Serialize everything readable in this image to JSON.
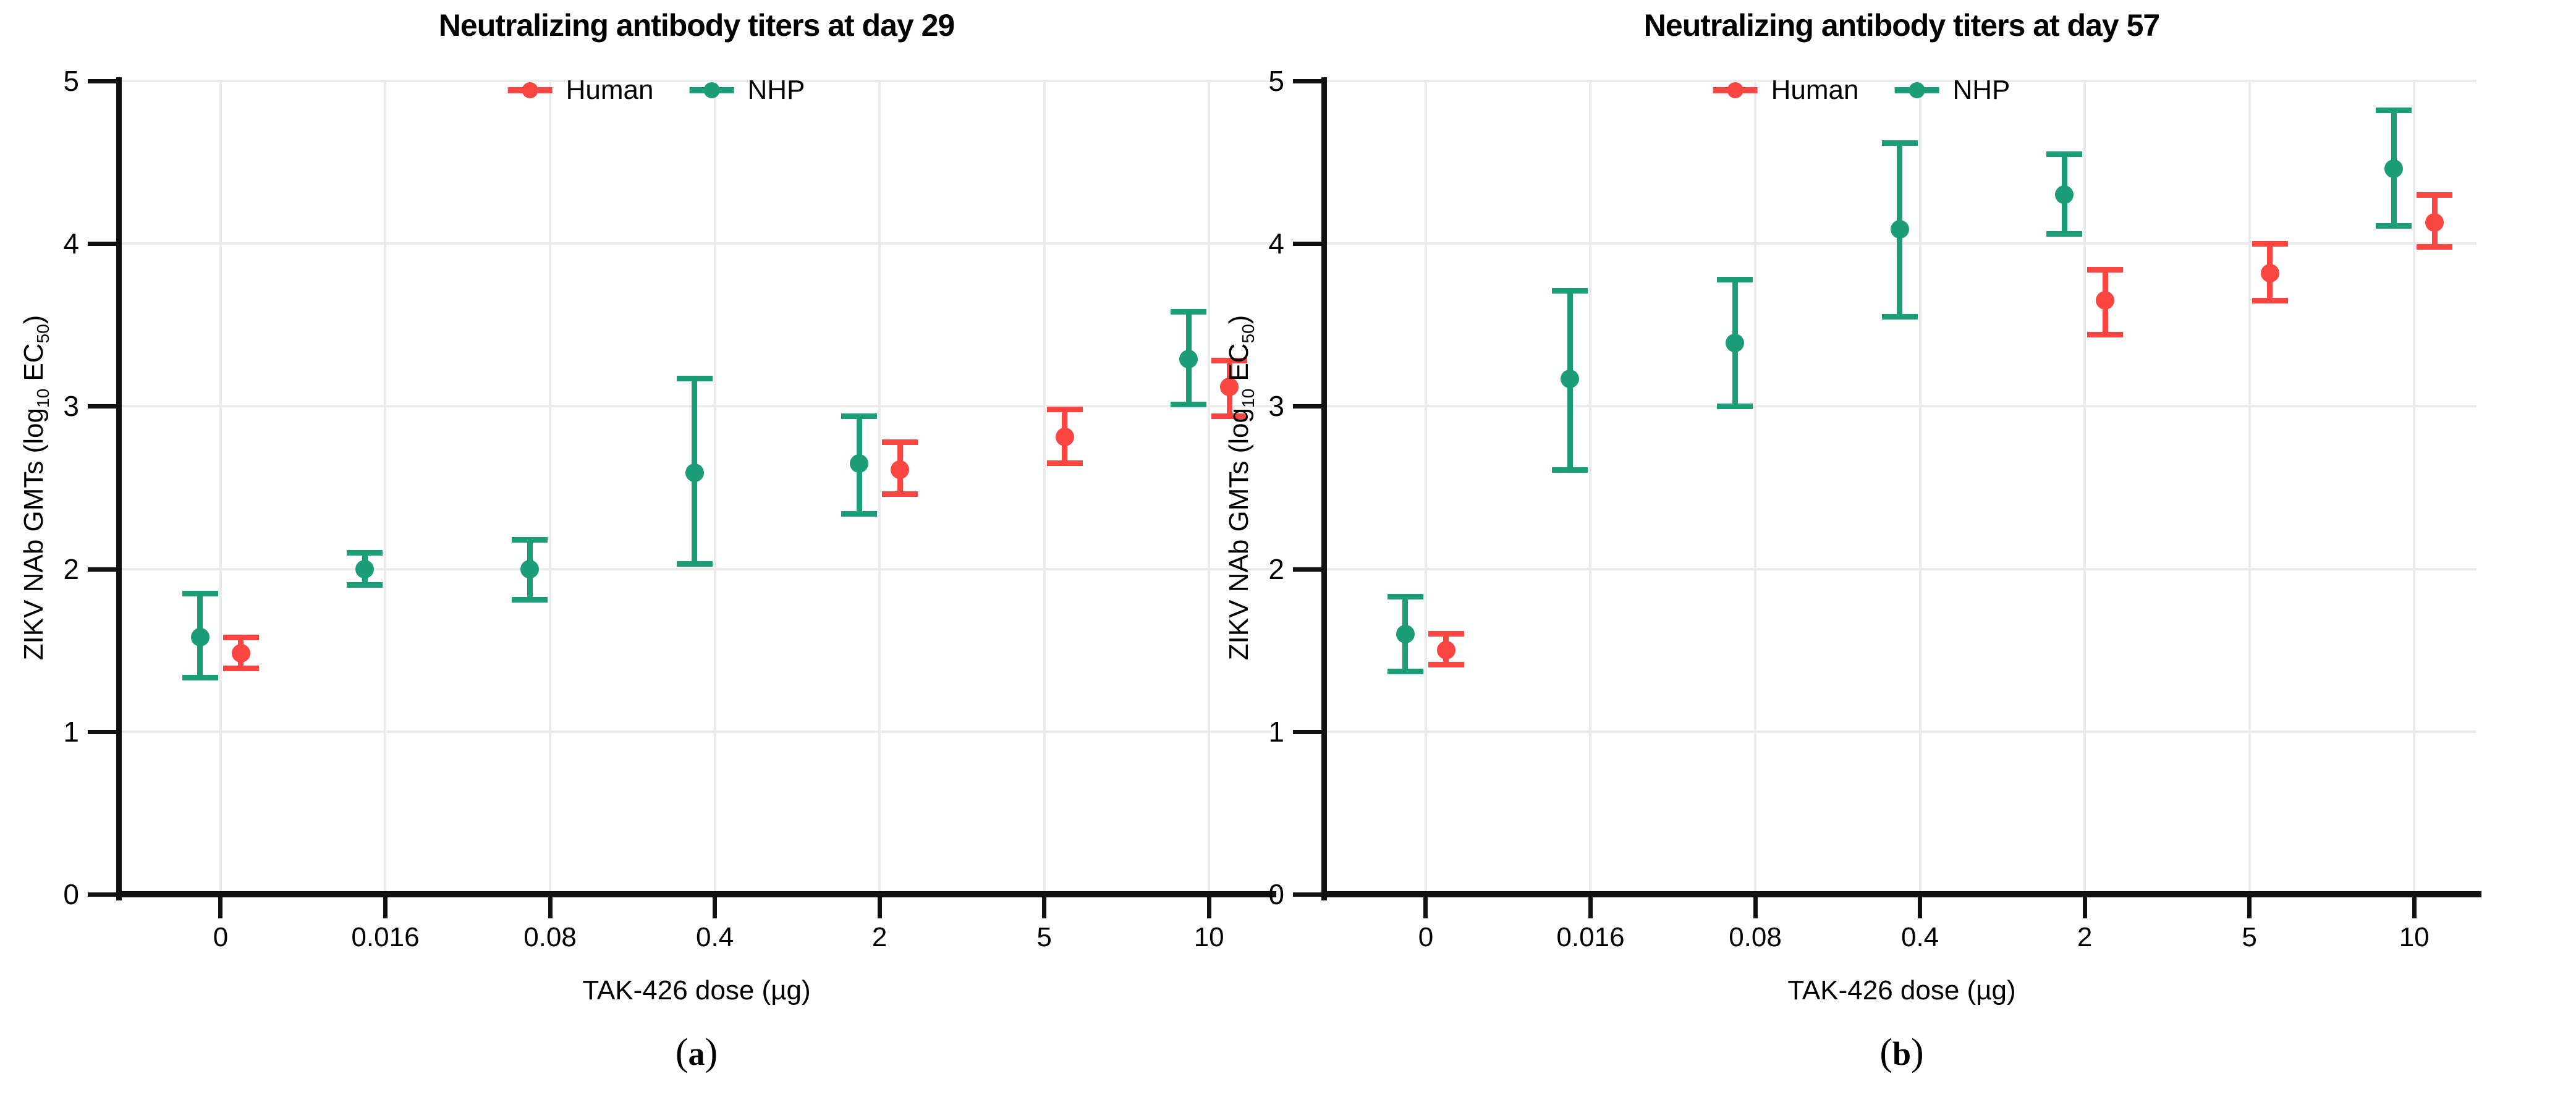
{
  "figure": {
    "background": "#ffffff",
    "grid_color": "#ebebeb",
    "axis_color": "#111111",
    "legend": {
      "position": "top-center-inside",
      "items": [
        {
          "label": "Human",
          "color": "#fa4540"
        },
        {
          "label": "NHP",
          "color": "#1b9e77"
        }
      ]
    },
    "ylabel": "ZIKV NAb GMTs (log10 EC50)",
    "ylabel_runs": [
      {
        "t": "ZIKV NAb GMTs (log",
        "sub": false
      },
      {
        "t": "10",
        "sub": true
      },
      {
        "t": " EC",
        "sub": false
      },
      {
        "t": "50",
        "sub": true
      },
      {
        "t": ")",
        "sub": false
      }
    ],
    "xlabel": "TAK-426 dose (µg)",
    "y_ticks": [
      "0",
      "1",
      "2",
      "3",
      "4",
      "5"
    ]
  },
  "chart_data": [
    {
      "type": "errorbar",
      "panel": "a",
      "title": "Neutralizing antibody titers at day 29",
      "caption": "(a)",
      "caption_letter": "a",
      "xlabel": "TAK-426 dose (µg)",
      "ylabel": "ZIKV NAb GMTs (log10 EC50)",
      "categories": [
        "0",
        "0.016",
        "0.08",
        "0.4",
        "2",
        "5",
        "10"
      ],
      "ylim": [
        0,
        5
      ],
      "grid": true,
      "series": [
        {
          "name": "NHP",
          "color": "#1b9e77",
          "points": [
            {
              "x": "0",
              "y": 1.58,
              "lo": 1.33,
              "hi": 1.85
            },
            {
              "x": "0.016",
              "y": 2.0,
              "lo": 1.9,
              "hi": 2.1
            },
            {
              "x": "0.08",
              "y": 2.0,
              "lo": 1.81,
              "hi": 2.18
            },
            {
              "x": "0.4",
              "y": 2.59,
              "lo": 2.03,
              "hi": 3.17
            },
            {
              "x": "2",
              "y": 2.65,
              "lo": 2.34,
              "hi": 2.94
            },
            {
              "x": "10",
              "y": 3.29,
              "lo": 3.01,
              "hi": 3.58
            }
          ]
        },
        {
          "name": "Human",
          "color": "#fa4540",
          "points": [
            {
              "x": "0",
              "y": 1.48,
              "lo": 1.39,
              "hi": 1.58
            },
            {
              "x": "2",
              "y": 2.61,
              "lo": 2.46,
              "hi": 2.78
            },
            {
              "x": "5",
              "y": 2.81,
              "lo": 2.65,
              "hi": 2.98
            },
            {
              "x": "10",
              "y": 3.12,
              "lo": 2.94,
              "hi": 3.28
            }
          ]
        }
      ]
    },
    {
      "type": "errorbar",
      "panel": "b",
      "title": "Neutralizing antibody titers at day 57",
      "caption": "(b)",
      "caption_letter": "b",
      "xlabel": "TAK-426 dose (µg)",
      "ylabel": "ZIKV NAb GMTs (log10 EC50)",
      "categories": [
        "0",
        "0.016",
        "0.08",
        "0.4",
        "2",
        "5",
        "10"
      ],
      "ylim": [
        0,
        5
      ],
      "grid": true,
      "series": [
        {
          "name": "NHP",
          "color": "#1b9e77",
          "points": [
            {
              "x": "0",
              "y": 1.6,
              "lo": 1.37,
              "hi": 1.83
            },
            {
              "x": "0.016",
              "y": 3.17,
              "lo": 2.61,
              "hi": 3.71
            },
            {
              "x": "0.08",
              "y": 3.39,
              "lo": 3.0,
              "hi": 3.78
            },
            {
              "x": "0.4",
              "y": 4.09,
              "lo": 3.55,
              "hi": 4.62
            },
            {
              "x": "2",
              "y": 4.3,
              "lo": 4.06,
              "hi": 4.55
            },
            {
              "x": "10",
              "y": 4.46,
              "lo": 4.11,
              "hi": 4.82
            }
          ]
        },
        {
          "name": "Human",
          "color": "#fa4540",
          "points": [
            {
              "x": "0",
              "y": 1.5,
              "lo": 1.41,
              "hi": 1.6
            },
            {
              "x": "2",
              "y": 3.65,
              "lo": 3.44,
              "hi": 3.84
            },
            {
              "x": "5",
              "y": 3.82,
              "lo": 3.65,
              "hi": 4.0
            },
            {
              "x": "10",
              "y": 4.13,
              "lo": 3.98,
              "hi": 4.3
            }
          ]
        }
      ]
    }
  ]
}
